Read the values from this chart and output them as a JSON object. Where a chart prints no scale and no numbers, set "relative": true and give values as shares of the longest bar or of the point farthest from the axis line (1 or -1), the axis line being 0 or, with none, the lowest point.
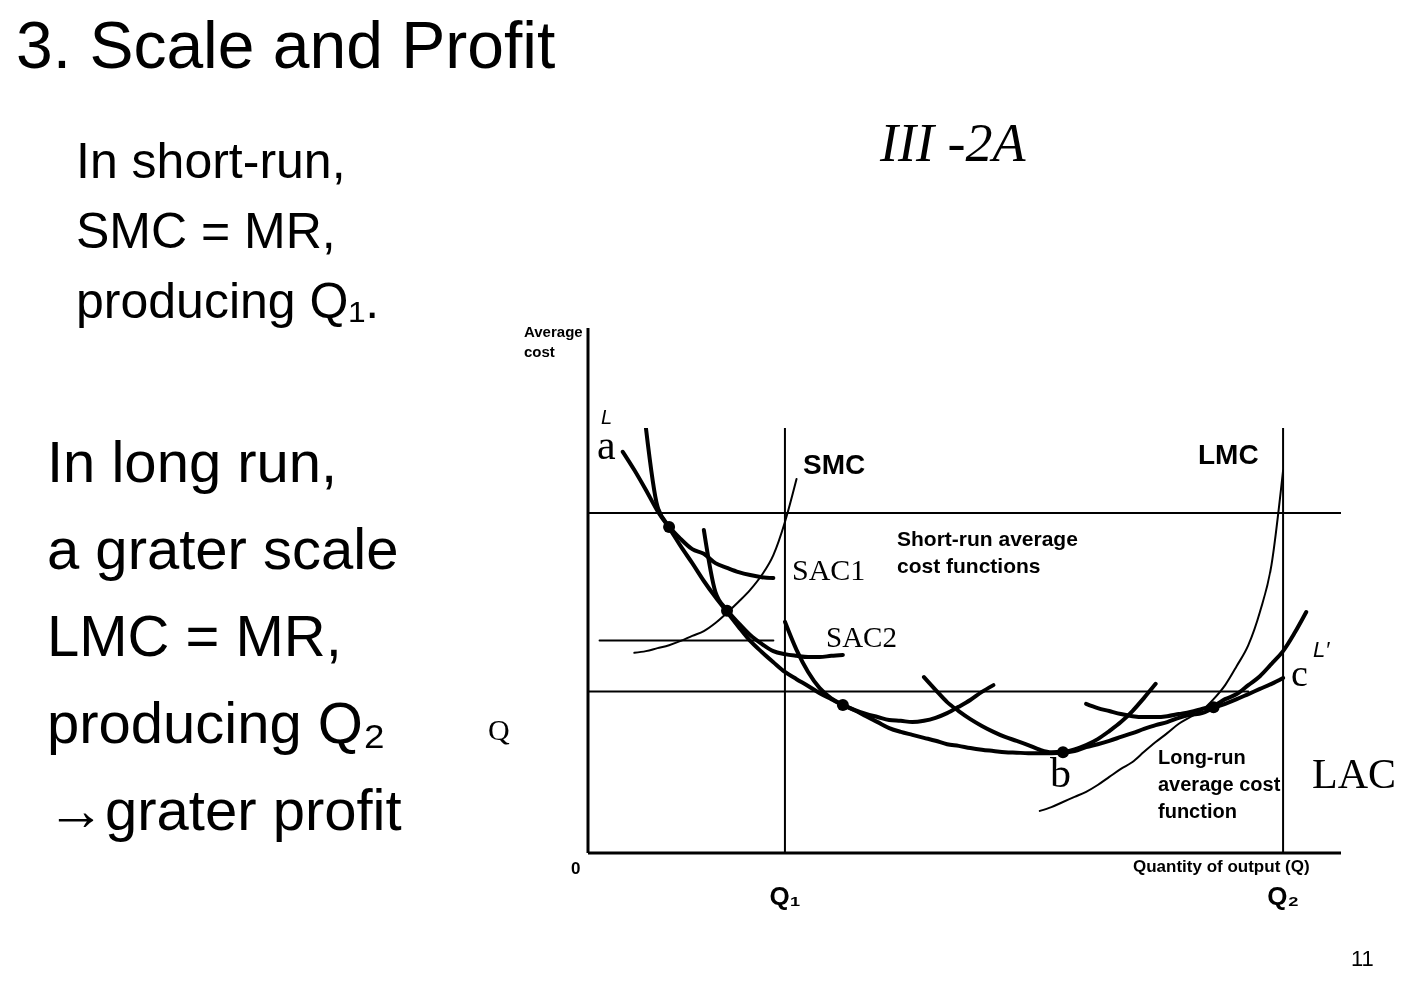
{
  "chart_data": {
    "type": "line",
    "title": "3. Scale and Profit",
    "xlabel": "Quantity of output (Q)",
    "ylabel": "Average cost",
    "relative": true,
    "marker": "none",
    "line_style": "solid",
    "categories": [
      null,
      null,
      null,
      null,
      null,
      null,
      null,
      null,
      null,
      null,
      null,
      null,
      null,
      null,
      null,
      null,
      null,
      "Q₁",
      null,
      null,
      null,
      null,
      null,
      null,
      null,
      null,
      null,
      null,
      null,
      null,
      null,
      null,
      null,
      null,
      null,
      null,
      null,
      null,
      null,
      null,
      null,
      null,
      null,
      null,
      null,
      null,
      null,
      null,
      null,
      null,
      null,
      null,
      null,
      null,
      null,
      null,
      null,
      null,
      null,
      null,
      "Q₂",
      null,
      null,
      null,
      null,
      null
    ],
    "series": [
      {
        "name": "LAC",
        "color": "#000000",
        "values": [
          null,
          null,
          null,
          0.944,
          0.901,
          0.854,
          0.805,
          0.765,
          0.722,
          0.682,
          0.64,
          0.602,
          0.567,
          0.532,
          0.499,
          0.473,
          0.449,
          0.426,
          0.409,
          0.393,
          0.376,
          0.362,
          0.348,
          0.336,
          0.322,
          0.308,
          0.294,
          0.285,
          0.278,
          0.271,
          0.264,
          0.256,
          0.252,
          0.247,
          0.243,
          0.24,
          0.237,
          0.236,
          0.235,
          0.235,
          0.235,
          0.236,
          0.24,
          0.249,
          0.256,
          0.264,
          0.273,
          0.282,
          0.292,
          0.301,
          0.308,
          0.318,
          0.325,
          0.329,
          0.341,
          0.351,
          0.362,
          0.374,
          0.386,
          0.398,
          0.412,
          null,
          null,
          null,
          null,
          null
        ]
      },
      {
        "name": "SAC1",
        "color": "#000000",
        "values": [
          null,
          null,
          null,
          null,
          null,
          1,
          0.815,
          0.769,
          0.739,
          0.715,
          0.704,
          0.682,
          0.671,
          0.661,
          0.654,
          0.649,
          0.647,
          null,
          null,
          null,
          null,
          null,
          null,
          null,
          null,
          null,
          null,
          null,
          null,
          null,
          null,
          null,
          null,
          null,
          null,
          null,
          null,
          null,
          null,
          null,
          null,
          null,
          null,
          null,
          null,
          null,
          null,
          null,
          null,
          null,
          null,
          null,
          null,
          null,
          null,
          null,
          null,
          null,
          null,
          null,
          null,
          null,
          null,
          null,
          null,
          null
        ]
      },
      {
        "name": "SAC2",
        "color": "#000000",
        "values": [
          null,
          null,
          null,
          null,
          null,
          null,
          null,
          null,
          null,
          null,
          0.76,
          0.614,
          0.572,
          0.541,
          0.513,
          0.492,
          0.475,
          0.468,
          0.464,
          0.461,
          0.461,
          0.464,
          0.466,
          null,
          null,
          null,
          null,
          null,
          null,
          null,
          null,
          null,
          null,
          null,
          null,
          null,
          null,
          null,
          null,
          null,
          null,
          null,
          null,
          null,
          null,
          null,
          null,
          null,
          null,
          null,
          null,
          null,
          null,
          null,
          null,
          null,
          null,
          null,
          null,
          null,
          null,
          null,
          null,
          null,
          null,
          null
        ]
      },
      {
        "color": "#000000",
        "values": [
          null,
          null,
          null,
          null,
          null,
          null,
          null,
          null,
          null,
          null,
          null,
          null,
          null,
          null,
          null,
          null,
          null,
          0.544,
          0.478,
          0.426,
          0.388,
          0.364,
          0.349,
          0.337,
          0.327,
          0.32,
          0.313,
          0.311,
          0.308,
          0.311,
          0.318,
          0.329,
          0.344,
          0.36,
          0.379,
          0.395,
          null,
          null,
          null,
          null,
          null,
          null,
          null,
          null,
          null,
          null,
          null,
          null,
          null,
          null,
          null,
          null,
          null,
          null,
          null,
          null,
          null,
          null,
          null,
          null,
          null,
          null,
          null,
          null,
          null,
          null
        ]
      },
      {
        "color": "#000000",
        "values": [
          null,
          null,
          null,
          null,
          null,
          null,
          null,
          null,
          null,
          null,
          null,
          null,
          null,
          null,
          null,
          null,
          null,
          null,
          null,
          null,
          null,
          null,
          null,
          null,
          null,
          null,
          null,
          null,
          null,
          0.414,
          0.384,
          0.355,
          0.334,
          0.315,
          0.299,
          0.285,
          0.273,
          0.264,
          0.254,
          0.243,
          0.237,
          0.238,
          0.244,
          0.254,
          0.268,
          0.287,
          0.308,
          0.334,
          0.365,
          0.398,
          null,
          null,
          null,
          null,
          null,
          null,
          null,
          null,
          null,
          null,
          null,
          null,
          null,
          null,
          null,
          null
        ]
      },
      {
        "color": "#000000",
        "values": [
          null,
          null,
          null,
          null,
          null,
          null,
          null,
          null,
          null,
          null,
          null,
          null,
          null,
          null,
          null,
          null,
          null,
          null,
          null,
          null,
          null,
          null,
          null,
          null,
          null,
          null,
          null,
          null,
          null,
          null,
          null,
          null,
          null,
          null,
          null,
          null,
          null,
          null,
          null,
          null,
          null,
          null,
          null,
          0.351,
          0.341,
          0.334,
          0.327,
          0.322,
          0.32,
          0.32,
          0.322,
          0.327,
          0.332,
          0.339,
          0.346,
          0.362,
          0.374,
          0.395,
          0.416,
          0.445,
          0.475,
          0.518,
          0.567,
          null,
          null,
          null
        ]
      },
      {
        "name": "SMC",
        "color": "#000000",
        "values": [
          null,
          null,
          null,
          null,
          0.471,
          0.475,
          0.482,
          0.489,
          0.499,
          0.511,
          0.522,
          0.541,
          0.565,
          0.591,
          0.619,
          0.654,
          0.701,
          0.779,
          0.88,
          null,
          null,
          null,
          null,
          null,
          null,
          null,
          null,
          null,
          null,
          null,
          null,
          null,
          null,
          null,
          null,
          null,
          null,
          null,
          null,
          null,
          null,
          null,
          null,
          null,
          null,
          null,
          null,
          null,
          null,
          null,
          null,
          null,
          null,
          null,
          null,
          null,
          null,
          null,
          null,
          null,
          null,
          null,
          null,
          null,
          null,
          null
        ]
      },
      {
        "name": "LMC",
        "color": "#000000",
        "values": [
          null,
          null,
          null,
          null,
          null,
          null,
          null,
          null,
          null,
          null,
          null,
          null,
          null,
          null,
          null,
          null,
          null,
          null,
          null,
          null,
          null,
          null,
          null,
          null,
          null,
          null,
          null,
          null,
          null,
          null,
          null,
          null,
          null,
          null,
          null,
          null,
          null,
          null,
          null,
          0.099,
          0.108,
          0.12,
          0.132,
          0.144,
          0.16,
          0.179,
          0.198,
          0.214,
          0.238,
          0.261,
          0.282,
          0.304,
          0.32,
          0.336,
          0.362,
          0.395,
          0.44,
          0.489,
          0.567,
          0.678,
          0.9,
          null,
          null,
          null,
          null,
          null
        ]
      },
      {
        "color": "#000000",
        "values": [
          0.8,
          0.8,
          0.8,
          0.8,
          0.8,
          0.8,
          0.8,
          0.8,
          0.8,
          0.8,
          0.8,
          0.8,
          0.8,
          0.8,
          0.8,
          0.8,
          0.8,
          0.8,
          0.8,
          0.8,
          0.8,
          0.8,
          0.8,
          0.8,
          0.8,
          0.8,
          0.8,
          0.8,
          0.8,
          0.8,
          0.8,
          0.8,
          0.8,
          0.8,
          0.8,
          0.8,
          0.8,
          0.8,
          0.8,
          0.8,
          0.8,
          0.8,
          0.8,
          0.8,
          0.8,
          0.8,
          0.8,
          0.8,
          0.8,
          0.8,
          0.8,
          0.8,
          0.8,
          0.8,
          0.8,
          0.8,
          0.8,
          0.8,
          0.8,
          0.8,
          0.8,
          0.8,
          0.8,
          0.8,
          0.8,
          0.8
        ]
      },
      {
        "color": "#000000",
        "values": [
          null,
          0.5,
          0.5,
          0.5,
          0.5,
          0.5,
          0.5,
          0.5,
          0.5,
          0.5,
          0.5,
          0.5,
          0.5,
          0.5,
          0.5,
          0.5,
          0.5,
          null,
          null,
          null,
          null,
          null,
          null,
          null,
          null,
          null,
          null,
          null,
          null,
          null,
          null,
          null,
          null,
          null,
          null,
          null,
          null,
          null,
          null,
          null,
          null,
          null,
          null,
          null,
          null,
          null,
          null,
          null,
          null,
          null,
          null,
          null,
          null,
          null,
          null,
          null,
          null,
          null,
          null,
          null,
          null,
          null,
          null,
          null,
          null,
          null
        ]
      },
      {
        "color": "#000000",
        "values": [
          0.38,
          0.38,
          0.38,
          0.38,
          0.38,
          0.38,
          0.38,
          0.38,
          0.38,
          0.38,
          0.38,
          0.38,
          0.38,
          0.38,
          0.38,
          0.38,
          0.38,
          0.38,
          0.38,
          0.38,
          0.38,
          0.38,
          0.38,
          0.38,
          0.38,
          0.38,
          0.38,
          0.38,
          0.38,
          0.38,
          0.38,
          0.38,
          0.38,
          0.38,
          0.38,
          0.38,
          0.38,
          0.38,
          0.38,
          0.38,
          0.38,
          0.38,
          0.38,
          0.38,
          0.38,
          0.38,
          0.38,
          0.38,
          0.38,
          0.38,
          0.38,
          0.38,
          0.38,
          0.38,
          0.38,
          0.38,
          0.38,
          0.38,
          null,
          null,
          null,
          null,
          null,
          null,
          null,
          null
        ]
      },
      {
        "type": "scatter",
        "marker": "circle",
        "color": "#000000",
        "values": [
          null,
          null,
          null,
          null,
          null,
          null,
          null,
          0.767,
          null,
          null,
          null,
          null,
          0.57,
          null,
          null,
          null,
          null,
          null,
          null,
          null,
          null,
          null,
          0.348,
          null,
          null,
          null,
          null,
          null,
          null,
          null,
          null,
          null,
          null,
          null,
          null,
          null,
          null,
          null,
          null,
          null,
          null,
          0.237,
          null,
          null,
          null,
          null,
          null,
          null,
          null,
          null,
          null,
          null,
          null,
          null,
          0.343,
          null,
          null,
          null,
          null,
          null,
          null,
          null,
          null,
          null,
          null,
          null
        ]
      }
    ],
    "ref_lines": [
      {
        "axis": "x",
        "value": "Q₁",
        "color": "#000000"
      },
      {
        "axis": "x",
        "value": "Q₂",
        "color": "#000000"
      }
    ],
    "annotations": [
      "III -2A",
      "In short-run,\nSMC = MR,\nproducing Q₁.",
      "In long run,\na grater scale\nLMC = MR,\nproducing Q₂\n→grater profit",
      "Short-run average\ncost functions",
      "Long-run\naverage cost\nfunction",
      "a",
      "L",
      "b",
      "c",
      "L′",
      "Q",
      "0",
      "11"
    ]
  }
}
